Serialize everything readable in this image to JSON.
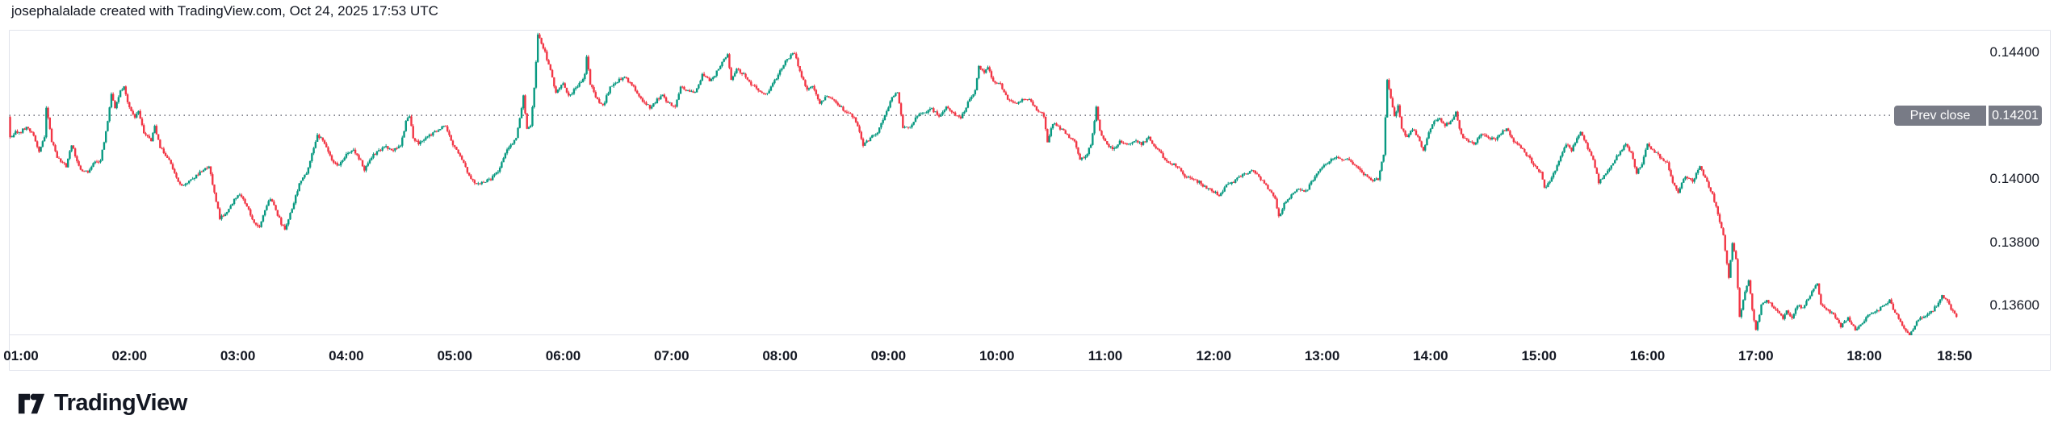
{
  "header": {
    "attribution": "josephalalade created with TradingView.com, Oct 24, 2025 17:53 UTC"
  },
  "prev_close_badge": {
    "label": "Prev close",
    "value": "0.14201"
  },
  "footer": {
    "logo_text": "TradingView"
  },
  "colors": {
    "up": "#089981",
    "down": "#F23645",
    "badge_bg": "#787B86",
    "badge_text": "#FFFFFF",
    "axis_text": "#131722",
    "border": "#E0E3EB",
    "dotted_line": "#80828C",
    "background": "#FFFFFF"
  },
  "chart_data": {
    "type": "candlestick",
    "prev_close": 0.14201,
    "y_axis": {
      "ticks": [
        {
          "label": "0.14400",
          "value": 0.144
        },
        {
          "label": "0.14000",
          "value": 0.14
        },
        {
          "label": "0.13800",
          "value": 0.138
        },
        {
          "label": "0.13600",
          "value": 0.136
        }
      ],
      "visible_range": [
        0.135,
        0.1447
      ],
      "grid": false
    },
    "x_axis": {
      "ticks": [
        "01:00",
        "02:00",
        "03:00",
        "04:00",
        "05:00",
        "06:00",
        "07:00",
        "08:00",
        "09:00",
        "10:00",
        "11:00",
        "12:00",
        "13:00",
        "14:00",
        "15:00",
        "16:00",
        "17:00",
        "18:00",
        "18:50"
      ]
    },
    "price_path": [
      [
        "00:53",
        0.14195
      ],
      [
        "00:54",
        0.1413
      ],
      [
        "00:57",
        0.1415
      ],
      [
        "01:00",
        0.1415
      ],
      [
        "01:03",
        0.14165
      ],
      [
        "01:07",
        0.1414
      ],
      [
        "01:10",
        0.14085
      ],
      [
        "01:13",
        0.1413
      ],
      [
        "01:14",
        0.14225
      ],
      [
        "01:17",
        0.1412
      ],
      [
        "01:20",
        0.1407
      ],
      [
        "01:25",
        0.1404
      ],
      [
        "01:28",
        0.1411
      ],
      [
        "01:33",
        0.14025
      ],
      [
        "01:37",
        0.1402
      ],
      [
        "01:40",
        0.1405
      ],
      [
        "01:44",
        0.1406
      ],
      [
        "01:48",
        0.1418
      ],
      [
        "01:50",
        0.1427
      ],
      [
        "01:52",
        0.14225
      ],
      [
        "01:55",
        0.1428
      ],
      [
        "01:57",
        0.1429
      ],
      [
        "02:00",
        0.14225
      ],
      [
        "02:03",
        0.1419
      ],
      [
        "02:05",
        0.14215
      ],
      [
        "02:08",
        0.14145
      ],
      [
        "02:12",
        0.1412
      ],
      [
        "02:14",
        0.14165
      ],
      [
        "02:17",
        0.141
      ],
      [
        "02:22",
        0.1406
      ],
      [
        "02:26",
        0.14
      ],
      [
        "02:29",
        0.13975
      ],
      [
        "02:32",
        0.1399
      ],
      [
        "02:36",
        0.14005
      ],
      [
        "02:40",
        0.14025
      ],
      [
        "02:44",
        0.1404
      ],
      [
        "02:47",
        0.1396
      ],
      [
        "02:50",
        0.13875
      ],
      [
        "02:53",
        0.1389
      ],
      [
        "02:56",
        0.13915
      ],
      [
        "03:00",
        0.1395
      ],
      [
        "03:03",
        0.1394
      ],
      [
        "03:06",
        0.139
      ],
      [
        "03:09",
        0.1386
      ],
      [
        "03:12",
        0.13845
      ],
      [
        "03:15",
        0.13905
      ],
      [
        "03:18",
        0.1394
      ],
      [
        "03:21",
        0.139
      ],
      [
        "03:24",
        0.1386
      ],
      [
        "03:26",
        0.1384
      ],
      [
        "03:30",
        0.13905
      ],
      [
        "03:34",
        0.13985
      ],
      [
        "03:38",
        0.1402
      ],
      [
        "03:41",
        0.1408
      ],
      [
        "03:44",
        0.1414
      ],
      [
        "03:48",
        0.14115
      ],
      [
        "03:52",
        0.1406
      ],
      [
        "03:56",
        0.1404
      ],
      [
        "04:00",
        0.1408
      ],
      [
        "04:04",
        0.1409
      ],
      [
        "04:08",
        0.14055
      ],
      [
        "04:10",
        0.1403
      ],
      [
        "04:14",
        0.1407
      ],
      [
        "04:18",
        0.1409
      ],
      [
        "04:22",
        0.141
      ],
      [
        "04:26",
        0.1409
      ],
      [
        "04:30",
        0.14105
      ],
      [
        "04:33",
        0.1418
      ],
      [
        "04:35",
        0.142
      ],
      [
        "04:37",
        0.1413
      ],
      [
        "04:40",
        0.1411
      ],
      [
        "04:44",
        0.1413
      ],
      [
        "04:48",
        0.14145
      ],
      [
        "04:52",
        0.1416
      ],
      [
        "04:55",
        0.1417
      ],
      [
        "04:58",
        0.1412
      ],
      [
        "05:02",
        0.1408
      ],
      [
        "05:05",
        0.1405
      ],
      [
        "05:08",
        0.1401
      ],
      [
        "05:12",
        0.13985
      ],
      [
        "05:16",
        0.1399
      ],
      [
        "05:20",
        0.14
      ],
      [
        "05:24",
        0.14025
      ],
      [
        "05:28",
        0.1408
      ],
      [
        "05:31",
        0.1411
      ],
      [
        "05:34",
        0.14125
      ],
      [
        "05:36",
        0.1419
      ],
      [
        "05:38",
        0.14265
      ],
      [
        "05:40",
        0.14155
      ],
      [
        "05:42",
        0.14165
      ],
      [
        "05:44",
        0.1429
      ],
      [
        "05:46",
        0.14455
      ],
      [
        "05:48",
        0.1443
      ],
      [
        "05:50",
        0.144
      ],
      [
        "05:53",
        0.1434
      ],
      [
        "05:56",
        0.14275
      ],
      [
        "06:00",
        0.143
      ],
      [
        "06:03",
        0.1426
      ],
      [
        "06:06",
        0.1428
      ],
      [
        "06:09",
        0.143
      ],
      [
        "06:12",
        0.1433
      ],
      [
        "06:13",
        0.14385
      ],
      [
        "06:15",
        0.143
      ],
      [
        "06:18",
        0.1426
      ],
      [
        "06:22",
        0.1423
      ],
      [
        "06:26",
        0.1429
      ],
      [
        "06:30",
        0.1431
      ],
      [
        "06:34",
        0.1432
      ],
      [
        "06:38",
        0.143
      ],
      [
        "06:42",
        0.1426
      ],
      [
        "06:45",
        0.1424
      ],
      [
        "06:48",
        0.14225
      ],
      [
        "06:52",
        0.1425
      ],
      [
        "06:55",
        0.14265
      ],
      [
        "06:58",
        0.1424
      ],
      [
        "07:02",
        0.1423
      ],
      [
        "07:05",
        0.1429
      ],
      [
        "07:09",
        0.1428
      ],
      [
        "07:13",
        0.1427
      ],
      [
        "07:17",
        0.1433
      ],
      [
        "07:21",
        0.1431
      ],
      [
        "07:24",
        0.1433
      ],
      [
        "07:28",
        0.1437
      ],
      [
        "07:31",
        0.1439
      ],
      [
        "07:33",
        0.1431
      ],
      [
        "07:36",
        0.1435
      ],
      [
        "07:40",
        0.1433
      ],
      [
        "07:44",
        0.143
      ],
      [
        "07:48",
        0.1428
      ],
      [
        "07:52",
        0.14265
      ],
      [
        "07:56",
        0.143
      ],
      [
        "08:00",
        0.1434
      ],
      [
        "08:04",
        0.1438
      ],
      [
        "08:08",
        0.144
      ],
      [
        "08:11",
        0.1434
      ],
      [
        "08:15",
        0.1428
      ],
      [
        "08:18",
        0.1429
      ],
      [
        "08:22",
        0.1424
      ],
      [
        "08:26",
        0.1426
      ],
      [
        "08:30",
        0.1425
      ],
      [
        "08:33",
        0.1423
      ],
      [
        "08:37",
        0.1421
      ],
      [
        "08:41",
        0.14195
      ],
      [
        "08:44",
        0.1415
      ],
      [
        "08:46",
        0.14105
      ],
      [
        "08:50",
        0.1413
      ],
      [
        "08:54",
        0.14145
      ],
      [
        "08:58",
        0.142
      ],
      [
        "09:02",
        0.1426
      ],
      [
        "09:05",
        0.1427
      ],
      [
        "09:08",
        0.14165
      ],
      [
        "09:12",
        0.1416
      ],
      [
        "09:16",
        0.142
      ],
      [
        "09:20",
        0.1421
      ],
      [
        "09:24",
        0.1422
      ],
      [
        "09:28",
        0.142
      ],
      [
        "09:32",
        0.1423
      ],
      [
        "09:36",
        0.1421
      ],
      [
        "09:40",
        0.1419
      ],
      [
        "09:44",
        0.1424
      ],
      [
        "09:48",
        0.1428
      ],
      [
        "09:50",
        0.14355
      ],
      [
        "09:53",
        0.14335
      ],
      [
        "09:55",
        0.1435
      ],
      [
        "09:58",
        0.1431
      ],
      [
        "10:02",
        0.143
      ],
      [
        "10:06",
        0.1425
      ],
      [
        "10:10",
        0.1424
      ],
      [
        "10:14",
        0.1425
      ],
      [
        "10:18",
        0.14253
      ],
      [
        "10:22",
        0.1422
      ],
      [
        "10:26",
        0.142
      ],
      [
        "10:28",
        0.1412
      ],
      [
        "10:31",
        0.14175
      ],
      [
        "10:35",
        0.1416
      ],
      [
        "10:39",
        0.1414
      ],
      [
        "10:43",
        0.14115
      ],
      [
        "10:46",
        0.1406
      ],
      [
        "10:49",
        0.1407
      ],
      [
        "10:52",
        0.1411
      ],
      [
        "10:55",
        0.14225
      ],
      [
        "10:57",
        0.1415
      ],
      [
        "11:00",
        0.1412
      ],
      [
        "11:04",
        0.1409
      ],
      [
        "11:08",
        0.1412
      ],
      [
        "11:12",
        0.1411
      ],
      [
        "11:16",
        0.1412
      ],
      [
        "11:20",
        0.1411
      ],
      [
        "11:24",
        0.1413
      ],
      [
        "11:28",
        0.141
      ],
      [
        "11:32",
        0.1407
      ],
      [
        "11:36",
        0.1405
      ],
      [
        "11:40",
        0.1404
      ],
      [
        "11:44",
        0.1401
      ],
      [
        "11:48",
        0.14
      ],
      [
        "11:52",
        0.1399
      ],
      [
        "11:56",
        0.1397
      ],
      [
        "12:00",
        0.1396
      ],
      [
        "12:03",
        0.13945
      ],
      [
        "12:07",
        0.1398
      ],
      [
        "12:11",
        0.1399
      ],
      [
        "12:15",
        0.1401
      ],
      [
        "12:19",
        0.1402
      ],
      [
        "12:22",
        0.14025
      ],
      [
        "12:26",
        0.14
      ],
      [
        "12:30",
        0.1397
      ],
      [
        "12:34",
        0.1394
      ],
      [
        "12:36",
        0.1388
      ],
      [
        "12:39",
        0.1392
      ],
      [
        "12:43",
        0.1395
      ],
      [
        "12:47",
        0.1397
      ],
      [
        "12:51",
        0.1396
      ],
      [
        "12:55",
        0.14
      ],
      [
        "12:59",
        0.1403
      ],
      [
        "13:03",
        0.1405
      ],
      [
        "13:07",
        0.1407
      ],
      [
        "13:11",
        0.14065
      ],
      [
        "13:15",
        0.1406
      ],
      [
        "13:19",
        0.1404
      ],
      [
        "13:23",
        0.14015
      ],
      [
        "13:27",
        0.13995
      ],
      [
        "13:31",
        0.14
      ],
      [
        "13:34",
        0.1408
      ],
      [
        "13:36",
        0.1431
      ],
      [
        "13:38",
        0.1426
      ],
      [
        "13:40",
        0.142
      ],
      [
        "13:42",
        0.1423
      ],
      [
        "13:44",
        0.1416
      ],
      [
        "13:47",
        0.1413
      ],
      [
        "13:50",
        0.1416
      ],
      [
        "13:53",
        0.1413
      ],
      [
        "13:56",
        0.1409
      ],
      [
        "13:59",
        0.1415
      ],
      [
        "14:02",
        0.1418
      ],
      [
        "14:05",
        0.1419
      ],
      [
        "14:08",
        0.1417
      ],
      [
        "14:11",
        0.1418
      ],
      [
        "14:14",
        0.1421
      ],
      [
        "14:17",
        0.1414
      ],
      [
        "14:20",
        0.1412
      ],
      [
        "14:24",
        0.1411
      ],
      [
        "14:28",
        0.1414
      ],
      [
        "14:32",
        0.1413
      ],
      [
        "14:36",
        0.14125
      ],
      [
        "14:40",
        0.1415
      ],
      [
        "14:42",
        0.1416
      ],
      [
        "14:46",
        0.1412
      ],
      [
        "14:50",
        0.141
      ],
      [
        "14:54",
        0.1407
      ],
      [
        "14:58",
        0.1404
      ],
      [
        "15:01",
        0.1402
      ],
      [
        "15:03",
        0.1397
      ],
      [
        "15:06",
        0.1399
      ],
      [
        "15:09",
        0.1403
      ],
      [
        "15:12",
        0.1407
      ],
      [
        "15:15",
        0.1411
      ],
      [
        "15:18",
        0.1409
      ],
      [
        "15:21",
        0.1413
      ],
      [
        "15:23",
        0.14145
      ],
      [
        "15:26",
        0.1411
      ],
      [
        "15:30",
        0.1406
      ],
      [
        "15:33",
        0.1399
      ],
      [
        "15:36",
        0.1401
      ],
      [
        "15:40",
        0.1404
      ],
      [
        "15:44",
        0.1408
      ],
      [
        "15:48",
        0.1411
      ],
      [
        "15:51",
        0.1408
      ],
      [
        "15:54",
        0.1402
      ],
      [
        "15:57",
        0.1405
      ],
      [
        "16:00",
        0.1411
      ],
      [
        "16:03",
        0.1409
      ],
      [
        "16:07",
        0.1407
      ],
      [
        "16:11",
        0.1405
      ],
      [
        "16:14",
        0.1399
      ],
      [
        "16:17",
        0.1396
      ],
      [
        "16:21",
        0.1401
      ],
      [
        "16:25",
        0.1399
      ],
      [
        "16:29",
        0.1404
      ],
      [
        "16:32",
        0.14
      ],
      [
        "16:36",
        0.1395
      ],
      [
        "16:39",
        0.1389
      ],
      [
        "16:42",
        0.1382
      ],
      [
        "16:45",
        0.1369
      ],
      [
        "16:47",
        0.138
      ],
      [
        "16:49",
        0.1375
      ],
      [
        "16:51",
        0.1356
      ],
      [
        "16:54",
        0.1364
      ],
      [
        "16:56",
        0.1368
      ],
      [
        "16:58",
        0.1359
      ],
      [
        "17:00",
        0.13525
      ],
      [
        "17:03",
        0.136
      ],
      [
        "17:06",
        0.1362
      ],
      [
        "17:09",
        0.136
      ],
      [
        "17:12",
        0.1358
      ],
      [
        "17:15",
        0.1356
      ],
      [
        "17:17",
        0.13585
      ],
      [
        "17:20",
        0.1356
      ],
      [
        "17:23",
        0.136
      ],
      [
        "17:26",
        0.1359
      ],
      [
        "17:29",
        0.13625
      ],
      [
        "17:32",
        0.1365
      ],
      [
        "17:34",
        0.1367
      ],
      [
        "17:36",
        0.136
      ],
      [
        "17:39",
        0.1359
      ],
      [
        "17:43",
        0.1357
      ],
      [
        "17:47",
        0.13535
      ],
      [
        "17:51",
        0.1356
      ],
      [
        "17:55",
        0.13525
      ],
      [
        "17:58",
        0.1354
      ],
      [
        "18:02",
        0.1357
      ],
      [
        "18:06",
        0.1358
      ],
      [
        "18:10",
        0.13595
      ],
      [
        "18:14",
        0.13615
      ],
      [
        "18:16",
        0.1359
      ],
      [
        "18:19",
        0.1356
      ],
      [
        "18:23",
        0.1352
      ],
      [
        "18:25",
        0.13505
      ],
      [
        "18:28",
        0.1354
      ],
      [
        "18:31",
        0.1356
      ],
      [
        "18:34",
        0.1357
      ],
      [
        "18:38",
        0.13585
      ],
      [
        "18:41",
        0.1361
      ],
      [
        "18:43",
        0.1363
      ],
      [
        "18:46",
        0.13615
      ],
      [
        "18:49",
        0.1358
      ],
      [
        "18:51",
        0.1356
      ]
    ]
  }
}
